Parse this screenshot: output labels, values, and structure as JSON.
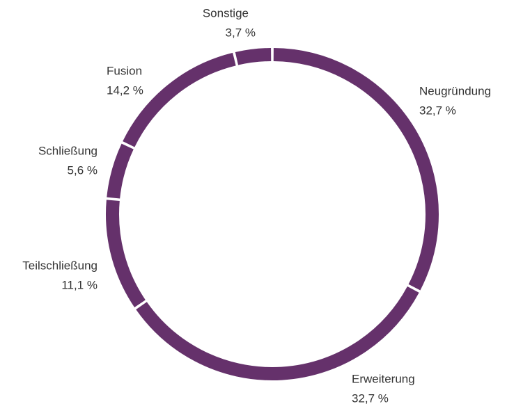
{
  "chart_data": {
    "type": "donut",
    "categories": [
      "Neugründung",
      "Erweiterung",
      "Teilschließung",
      "Schließung",
      "Fusion",
      "Sonstige"
    ],
    "values": [
      32.7,
      32.7,
      11.1,
      5.6,
      14.2,
      3.7
    ],
    "value_labels": [
      "32,7 %",
      "32,7 %",
      "11,1 %",
      "5,6 %",
      "14,2 %",
      "3,7 %"
    ],
    "color": "#65316b"
  }
}
